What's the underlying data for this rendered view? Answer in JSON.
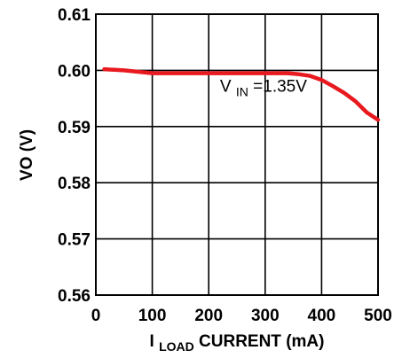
{
  "chart_data": {
    "type": "line",
    "xlabel": {
      "main": "I",
      "sub": "LOAD",
      "rest": " CURRENT (mA)"
    },
    "ylabel": "VO (V)",
    "xlim": [
      0,
      500
    ],
    "ylim": [
      0.56,
      0.61
    ],
    "xticks": [
      0,
      100,
      200,
      300,
      400,
      500
    ],
    "yticks": [
      0.56,
      0.57,
      0.58,
      0.59,
      0.6,
      0.61
    ],
    "ytick_labels": [
      "0.56",
      "0.57",
      "0.58",
      "0.59",
      "0.60",
      "0.61"
    ],
    "grid": true,
    "series": [
      {
        "color": "#e8191f",
        "x": [
          15,
          50,
          100,
          150,
          200,
          250,
          300,
          340,
          360,
          380,
          400,
          420,
          440,
          460,
          480,
          500
        ],
        "y": [
          0.6002,
          0.6,
          0.5995,
          0.5995,
          0.5995,
          0.5995,
          0.5995,
          0.5995,
          0.5993,
          0.599,
          0.5983,
          0.5972,
          0.596,
          0.5945,
          0.5925,
          0.5912
        ]
      }
    ],
    "annotations": [
      {
        "main": "V",
        "sub": "IN",
        "rest": "=1.35V",
        "x": 220,
        "y": 0.5962
      }
    ]
  }
}
